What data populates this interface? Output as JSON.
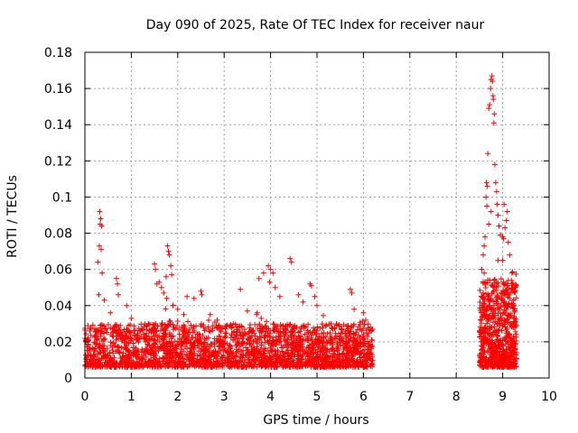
{
  "chart_data": {
    "type": "scatter",
    "title": "Day 090 of 2025, Rate Of TEC Index for receiver naur",
    "xlabel": "GPS time / hours",
    "ylabel": "ROTI / TECUs",
    "xlim": [
      0,
      10
    ],
    "ylim": [
      0,
      0.18
    ],
    "xticks": [
      0,
      1,
      2,
      3,
      4,
      5,
      6,
      7,
      8,
      9,
      10
    ],
    "xtick_labels": [
      "0",
      "1",
      "2",
      "3",
      "4",
      "5",
      "6",
      "7",
      "8",
      "9",
      "10"
    ],
    "yticks": [
      0,
      0.02,
      0.04,
      0.06,
      0.08,
      0.1,
      0.12,
      0.14,
      0.16,
      0.18
    ],
    "ytick_labels": [
      "0",
      "0.02",
      "0.04",
      "0.06",
      "0.08",
      "0.1",
      "0.12",
      "0.14",
      "0.16",
      "0.18"
    ],
    "grid": true,
    "marker": "+",
    "marker_color": "#ff0000",
    "series": [
      {
        "name": "ROTI",
        "segments": [
          {
            "x_range": [
              0.0,
              6.2
            ],
            "base_range": [
              0.006,
              0.03
            ]
          },
          {
            "x_range": [
              8.5,
              9.3
            ],
            "base_range": [
              0.006,
              0.055
            ]
          }
        ],
        "points": [
          [
            0.32,
            0.092
          ],
          [
            0.34,
            0.088
          ],
          [
            0.33,
            0.085
          ],
          [
            0.36,
            0.084
          ],
          [
            0.31,
            0.073
          ],
          [
            0.35,
            0.071
          ],
          [
            0.28,
            0.064
          ],
          [
            0.37,
            0.058
          ],
          [
            0.3,
            0.046
          ],
          [
            0.42,
            0.043
          ],
          [
            0.55,
            0.036
          ],
          [
            0.68,
            0.055
          ],
          [
            0.7,
            0.052
          ],
          [
            0.72,
            0.046
          ],
          [
            0.9,
            0.04
          ],
          [
            1.0,
            0.033
          ],
          [
            1.5,
            0.063
          ],
          [
            1.52,
            0.06
          ],
          [
            1.6,
            0.053
          ],
          [
            1.55,
            0.052
          ],
          [
            1.65,
            0.05
          ],
          [
            1.7,
            0.047
          ],
          [
            1.75,
            0.056
          ],
          [
            1.78,
            0.073
          ],
          [
            1.8,
            0.07
          ],
          [
            1.82,
            0.068
          ],
          [
            1.85,
            0.062
          ],
          [
            1.87,
            0.057
          ],
          [
            1.76,
            0.044
          ],
          [
            1.9,
            0.04
          ],
          [
            2.0,
            0.038
          ],
          [
            2.2,
            0.045
          ],
          [
            2.35,
            0.044
          ],
          [
            2.5,
            0.048
          ],
          [
            2.52,
            0.046
          ],
          [
            2.7,
            0.035
          ],
          [
            2.85,
            0.032
          ],
          [
            3.35,
            0.049
          ],
          [
            3.5,
            0.037
          ],
          [
            3.7,
            0.035
          ],
          [
            3.8,
            0.033
          ],
          [
            3.75,
            0.055
          ],
          [
            3.85,
            0.058
          ],
          [
            3.95,
            0.062
          ],
          [
            4.0,
            0.06
          ],
          [
            4.05,
            0.058
          ],
          [
            3.98,
            0.053
          ],
          [
            4.1,
            0.05
          ],
          [
            4.2,
            0.045
          ],
          [
            4.42,
            0.066
          ],
          [
            4.45,
            0.064
          ],
          [
            4.6,
            0.046
          ],
          [
            4.7,
            0.042
          ],
          [
            4.85,
            0.052
          ],
          [
            4.88,
            0.051
          ],
          [
            4.95,
            0.045
          ],
          [
            5.0,
            0.04
          ],
          [
            5.3,
            0.03
          ],
          [
            5.72,
            0.049
          ],
          [
            5.75,
            0.047
          ],
          [
            5.8,
            0.038
          ],
          [
            6.0,
            0.036
          ],
          [
            6.05,
            0.032
          ],
          [
            8.55,
            0.06
          ],
          [
            8.58,
            0.068
          ],
          [
            8.6,
            0.073
          ],
          [
            8.62,
            0.078
          ],
          [
            8.64,
            0.1
          ],
          [
            8.65,
            0.108
          ],
          [
            8.67,
            0.106
          ],
          [
            8.68,
            0.124
          ],
          [
            8.7,
            0.149
          ],
          [
            8.72,
            0.151
          ],
          [
            8.74,
            0.16
          ],
          [
            8.75,
            0.165
          ],
          [
            8.77,
            0.167
          ],
          [
            8.78,
            0.164
          ],
          [
            8.79,
            0.156
          ],
          [
            8.8,
            0.154
          ],
          [
            8.82,
            0.146
          ],
          [
            8.81,
            0.141
          ],
          [
            8.83,
            0.118
          ],
          [
            8.85,
            0.108
          ],
          [
            8.87,
            0.103
          ],
          [
            8.88,
            0.096
          ],
          [
            8.66,
            0.095
          ],
          [
            8.9,
            0.09
          ],
          [
            8.92,
            0.084
          ],
          [
            8.95,
            0.079
          ],
          [
            9.0,
            0.078
          ],
          [
            9.02,
            0.077
          ],
          [
            9.05,
            0.083
          ],
          [
            9.08,
            0.087
          ],
          [
            9.1,
            0.092
          ],
          [
            9.03,
            0.096
          ],
          [
            9.12,
            0.075
          ],
          [
            9.15,
            0.068
          ],
          [
            8.7,
            0.085
          ],
          [
            8.75,
            0.092
          ],
          [
            8.6,
            0.058
          ],
          [
            8.9,
            0.065
          ],
          [
            9.0,
            0.065
          ],
          [
            9.2,
            0.058
          ],
          [
            9.25,
            0.05
          ],
          [
            8.55,
            0.045
          ]
        ]
      }
    ]
  }
}
